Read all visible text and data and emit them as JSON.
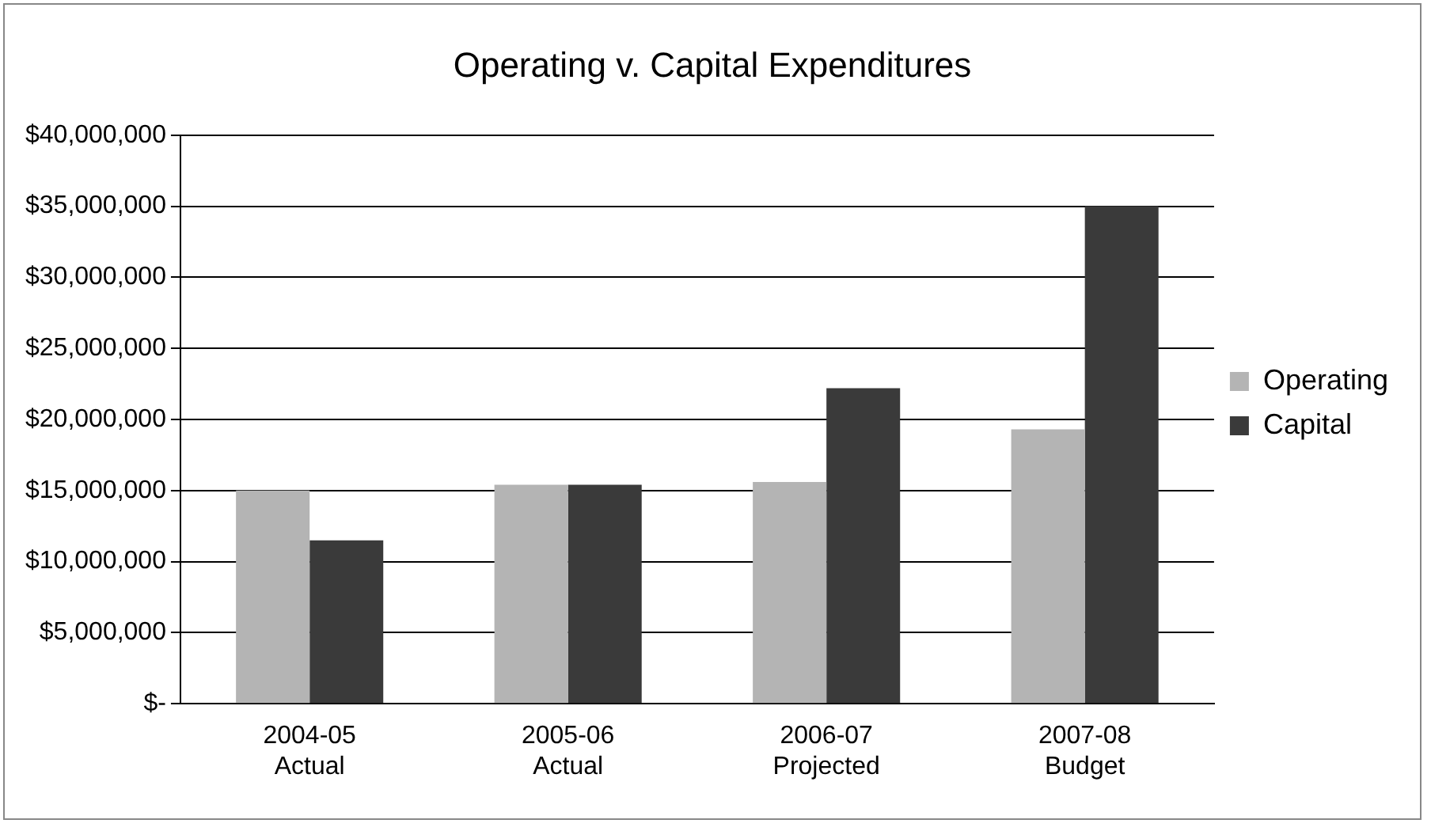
{
  "chart_data": {
    "type": "bar",
    "title": "Operating v. Capital Expenditures",
    "categories": [
      "2004-05\nActual",
      "2005-06\nActual",
      "2006-07\nProjected",
      "2007-08\nBudget"
    ],
    "series": [
      {
        "name": "Operating",
        "color": "#b4b4b4",
        "values": [
          15000000,
          15400000,
          15600000,
          19300000
        ]
      },
      {
        "name": "Capital",
        "color": "#3a3a3a",
        "values": [
          11500000,
          15400000,
          22200000,
          35000000
        ]
      }
    ],
    "ylim": [
      0,
      40000000
    ],
    "yticks": [
      {
        "value": 0,
        "label": "$-"
      },
      {
        "value": 5000000,
        "label": "$5,000,000"
      },
      {
        "value": 10000000,
        "label": "$10,000,000"
      },
      {
        "value": 15000000,
        "label": "$15,000,000"
      },
      {
        "value": 20000000,
        "label": "$20,000,000"
      },
      {
        "value": 25000000,
        "label": "$25,000,000"
      },
      {
        "value": 30000000,
        "label": "$30,000,000"
      },
      {
        "value": 35000000,
        "label": "$35,000,000"
      },
      {
        "value": 40000000,
        "label": "$40,000,000"
      }
    ],
    "grid": "y",
    "legend": "right"
  }
}
